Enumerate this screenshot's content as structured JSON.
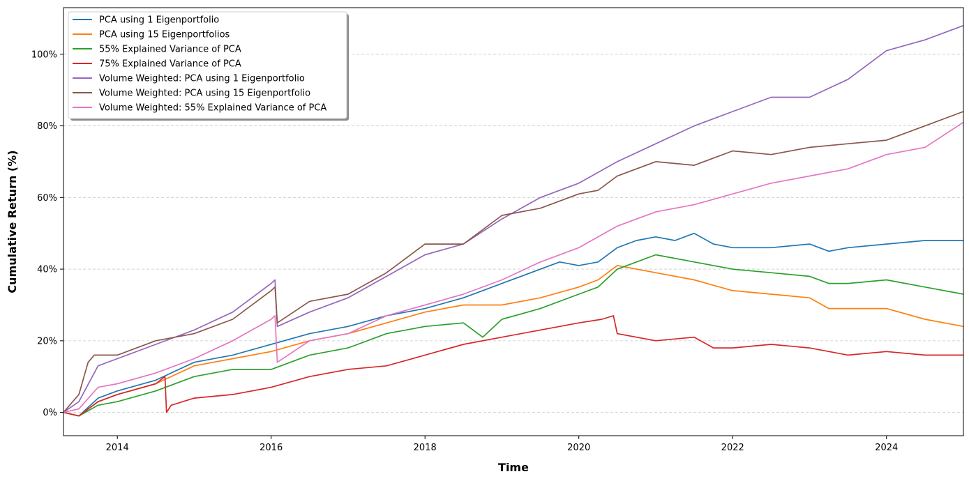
{
  "chart_data": {
    "type": "line",
    "title": "",
    "xlabel": "Time",
    "ylabel": "Cumulative Return (%)",
    "xlim": [
      2013.3,
      2025.0
    ],
    "ylim": [
      -6.5,
      113
    ],
    "x_ticks": [
      {
        "value": 2014,
        "label": "2014"
      },
      {
        "value": 2016,
        "label": "2016"
      },
      {
        "value": 2018,
        "label": "2018"
      },
      {
        "value": 2020,
        "label": "2020"
      },
      {
        "value": 2022,
        "label": "2022"
      },
      {
        "value": 2024,
        "label": "2024"
      }
    ],
    "y_ticks": [
      {
        "value": 0,
        "label": "0%"
      },
      {
        "value": 20,
        "label": "20%"
      },
      {
        "value": 40,
        "label": "40%"
      },
      {
        "value": 60,
        "label": "60%"
      },
      {
        "value": 80,
        "label": "80%"
      },
      {
        "value": 100,
        "label": "100%"
      }
    ],
    "grid": "horizontal-dashed",
    "legend_position": "top-left",
    "series": [
      {
        "name": "PCA using 1 Eigenportfolio",
        "color": "#1f77b4",
        "x": [
          2013.3,
          2013.5,
          2013.75,
          2014.0,
          2014.5,
          2015.0,
          2015.5,
          2016.0,
          2016.5,
          2017.0,
          2017.5,
          2018.0,
          2018.5,
          2018.75,
          2019.0,
          2019.5,
          2019.75,
          2020.0,
          2020.25,
          2020.5,
          2020.75,
          2021.0,
          2021.25,
          2021.5,
          2021.75,
          2022.0,
          2022.5,
          2023.0,
          2023.25,
          2023.5,
          2024.0,
          2024.5,
          2025.0
        ],
        "y": [
          0,
          -1,
          4,
          6,
          9,
          14,
          16,
          19,
          22,
          24,
          27,
          29,
          32,
          34,
          36,
          40,
          42,
          41,
          42,
          46,
          48,
          49,
          48,
          50,
          47,
          46,
          46,
          47,
          45,
          46,
          47,
          48,
          48
        ]
      },
      {
        "name": "PCA using 15 Eigenportfolios",
        "color": "#ff7f0e",
        "x": [
          2013.3,
          2013.5,
          2013.75,
          2014.0,
          2014.5,
          2015.0,
          2015.5,
          2016.0,
          2016.5,
          2017.0,
          2017.5,
          2018.0,
          2018.5,
          2019.0,
          2019.5,
          2020.0,
          2020.25,
          2020.5,
          2020.75,
          2021.0,
          2021.5,
          2022.0,
          2022.5,
          2023.0,
          2023.25,
          2023.5,
          2024.0,
          2024.5,
          2025.0
        ],
        "y": [
          0,
          -1,
          3,
          5,
          8,
          13,
          15,
          17,
          20,
          22,
          25,
          28,
          30,
          30,
          32,
          35,
          37,
          41,
          40,
          39,
          37,
          34,
          33,
          32,
          29,
          29,
          29,
          26,
          24
        ]
      },
      {
        "name": "55% Explained Variance of PCA",
        "color": "#2ca02c",
        "x": [
          2013.3,
          2013.5,
          2013.75,
          2014.0,
          2014.5,
          2015.0,
          2015.5,
          2016.0,
          2016.5,
          2017.0,
          2017.5,
          2018.0,
          2018.5,
          2018.75,
          2019.0,
          2019.5,
          2020.0,
          2020.25,
          2020.5,
          2020.75,
          2021.0,
          2021.5,
          2022.0,
          2022.5,
          2023.0,
          2023.25,
          2023.5,
          2024.0,
          2024.5,
          2025.0
        ],
        "y": [
          0,
          -1,
          2,
          3,
          6,
          10,
          12,
          12,
          16,
          18,
          22,
          24,
          25,
          21,
          26,
          29,
          33,
          35,
          40,
          42,
          44,
          42,
          40,
          39,
          38,
          36,
          36,
          37,
          35,
          33
        ]
      },
      {
        "name": "75% Explained Variance of PCA",
        "color": "#d62728",
        "x": [
          2013.3,
          2013.5,
          2013.75,
          2014.0,
          2014.5,
          2014.62,
          2014.64,
          2014.7,
          2015.0,
          2015.5,
          2016.0,
          2016.5,
          2017.0,
          2017.5,
          2018.0,
          2018.5,
          2019.0,
          2019.5,
          2020.0,
          2020.3,
          2020.45,
          2020.5,
          2021.0,
          2021.5,
          2021.75,
          2022.0,
          2022.5,
          2023.0,
          2023.5,
          2024.0,
          2024.5,
          2025.0
        ],
        "y": [
          0,
          -1,
          3,
          5,
          8,
          10,
          0,
          2,
          4,
          5,
          7,
          10,
          12,
          13,
          16,
          19,
          21,
          23,
          25,
          26,
          27,
          22,
          20,
          21,
          18,
          18,
          19,
          18,
          16,
          17,
          16,
          16
        ]
      },
      {
        "name": "Volume Weighted: PCA using 1 Eigenportfolio",
        "color": "#9467bd",
        "x": [
          2013.3,
          2013.5,
          2013.75,
          2014.0,
          2014.5,
          2015.0,
          2015.5,
          2016.0,
          2016.05,
          2016.08,
          2016.5,
          2017.0,
          2017.5,
          2018.0,
          2018.5,
          2019.0,
          2019.5,
          2020.0,
          2020.5,
          2021.0,
          2021.5,
          2022.0,
          2022.5,
          2023.0,
          2023.5,
          2024.0,
          2024.5,
          2025.0
        ],
        "y": [
          0,
          3,
          13,
          15,
          19,
          23,
          28,
          36,
          37,
          24,
          28,
          32,
          38,
          44,
          47,
          54,
          60,
          64,
          70,
          75,
          80,
          84,
          88,
          88,
          93,
          101,
          104,
          108
        ]
      },
      {
        "name": "Volume Weighted: PCA using 15 Eigenportfolio",
        "color": "#8c564b",
        "x": [
          2013.3,
          2013.5,
          2013.62,
          2013.7,
          2014.0,
          2014.5,
          2015.0,
          2015.5,
          2016.0,
          2016.05,
          2016.08,
          2016.5,
          2017.0,
          2017.5,
          2018.0,
          2018.5,
          2019.0,
          2019.5,
          2020.0,
          2020.25,
          2020.5,
          2021.0,
          2021.5,
          2022.0,
          2022.5,
          2023.0,
          2023.5,
          2024.0,
          2024.5,
          2025.0
        ],
        "y": [
          0,
          5,
          14,
          16,
          16,
          20,
          22,
          26,
          34,
          35,
          25,
          31,
          33,
          39,
          47,
          47,
          55,
          57,
          61,
          62,
          66,
          70,
          69,
          73,
          72,
          74,
          75,
          76,
          80,
          84
        ]
      },
      {
        "name": "Volume Weighted: 55% Explained Variance of PCA",
        "color": "#e377c2",
        "x": [
          2013.3,
          2013.5,
          2013.75,
          2014.0,
          2014.5,
          2015.0,
          2015.5,
          2016.0,
          2016.05,
          2016.08,
          2016.5,
          2017.0,
          2017.5,
          2018.0,
          2018.5,
          2019.0,
          2019.5,
          2020.0,
          2020.5,
          2021.0,
          2021.5,
          2022.0,
          2022.5,
          2023.0,
          2023.5,
          2024.0,
          2024.5,
          2025.0
        ],
        "y": [
          0,
          1,
          7,
          8,
          11,
          15,
          20,
          26,
          27,
          14,
          20,
          22,
          27,
          30,
          33,
          37,
          42,
          46,
          52,
          56,
          58,
          61,
          64,
          66,
          68,
          72,
          74,
          81
        ]
      }
    ]
  }
}
